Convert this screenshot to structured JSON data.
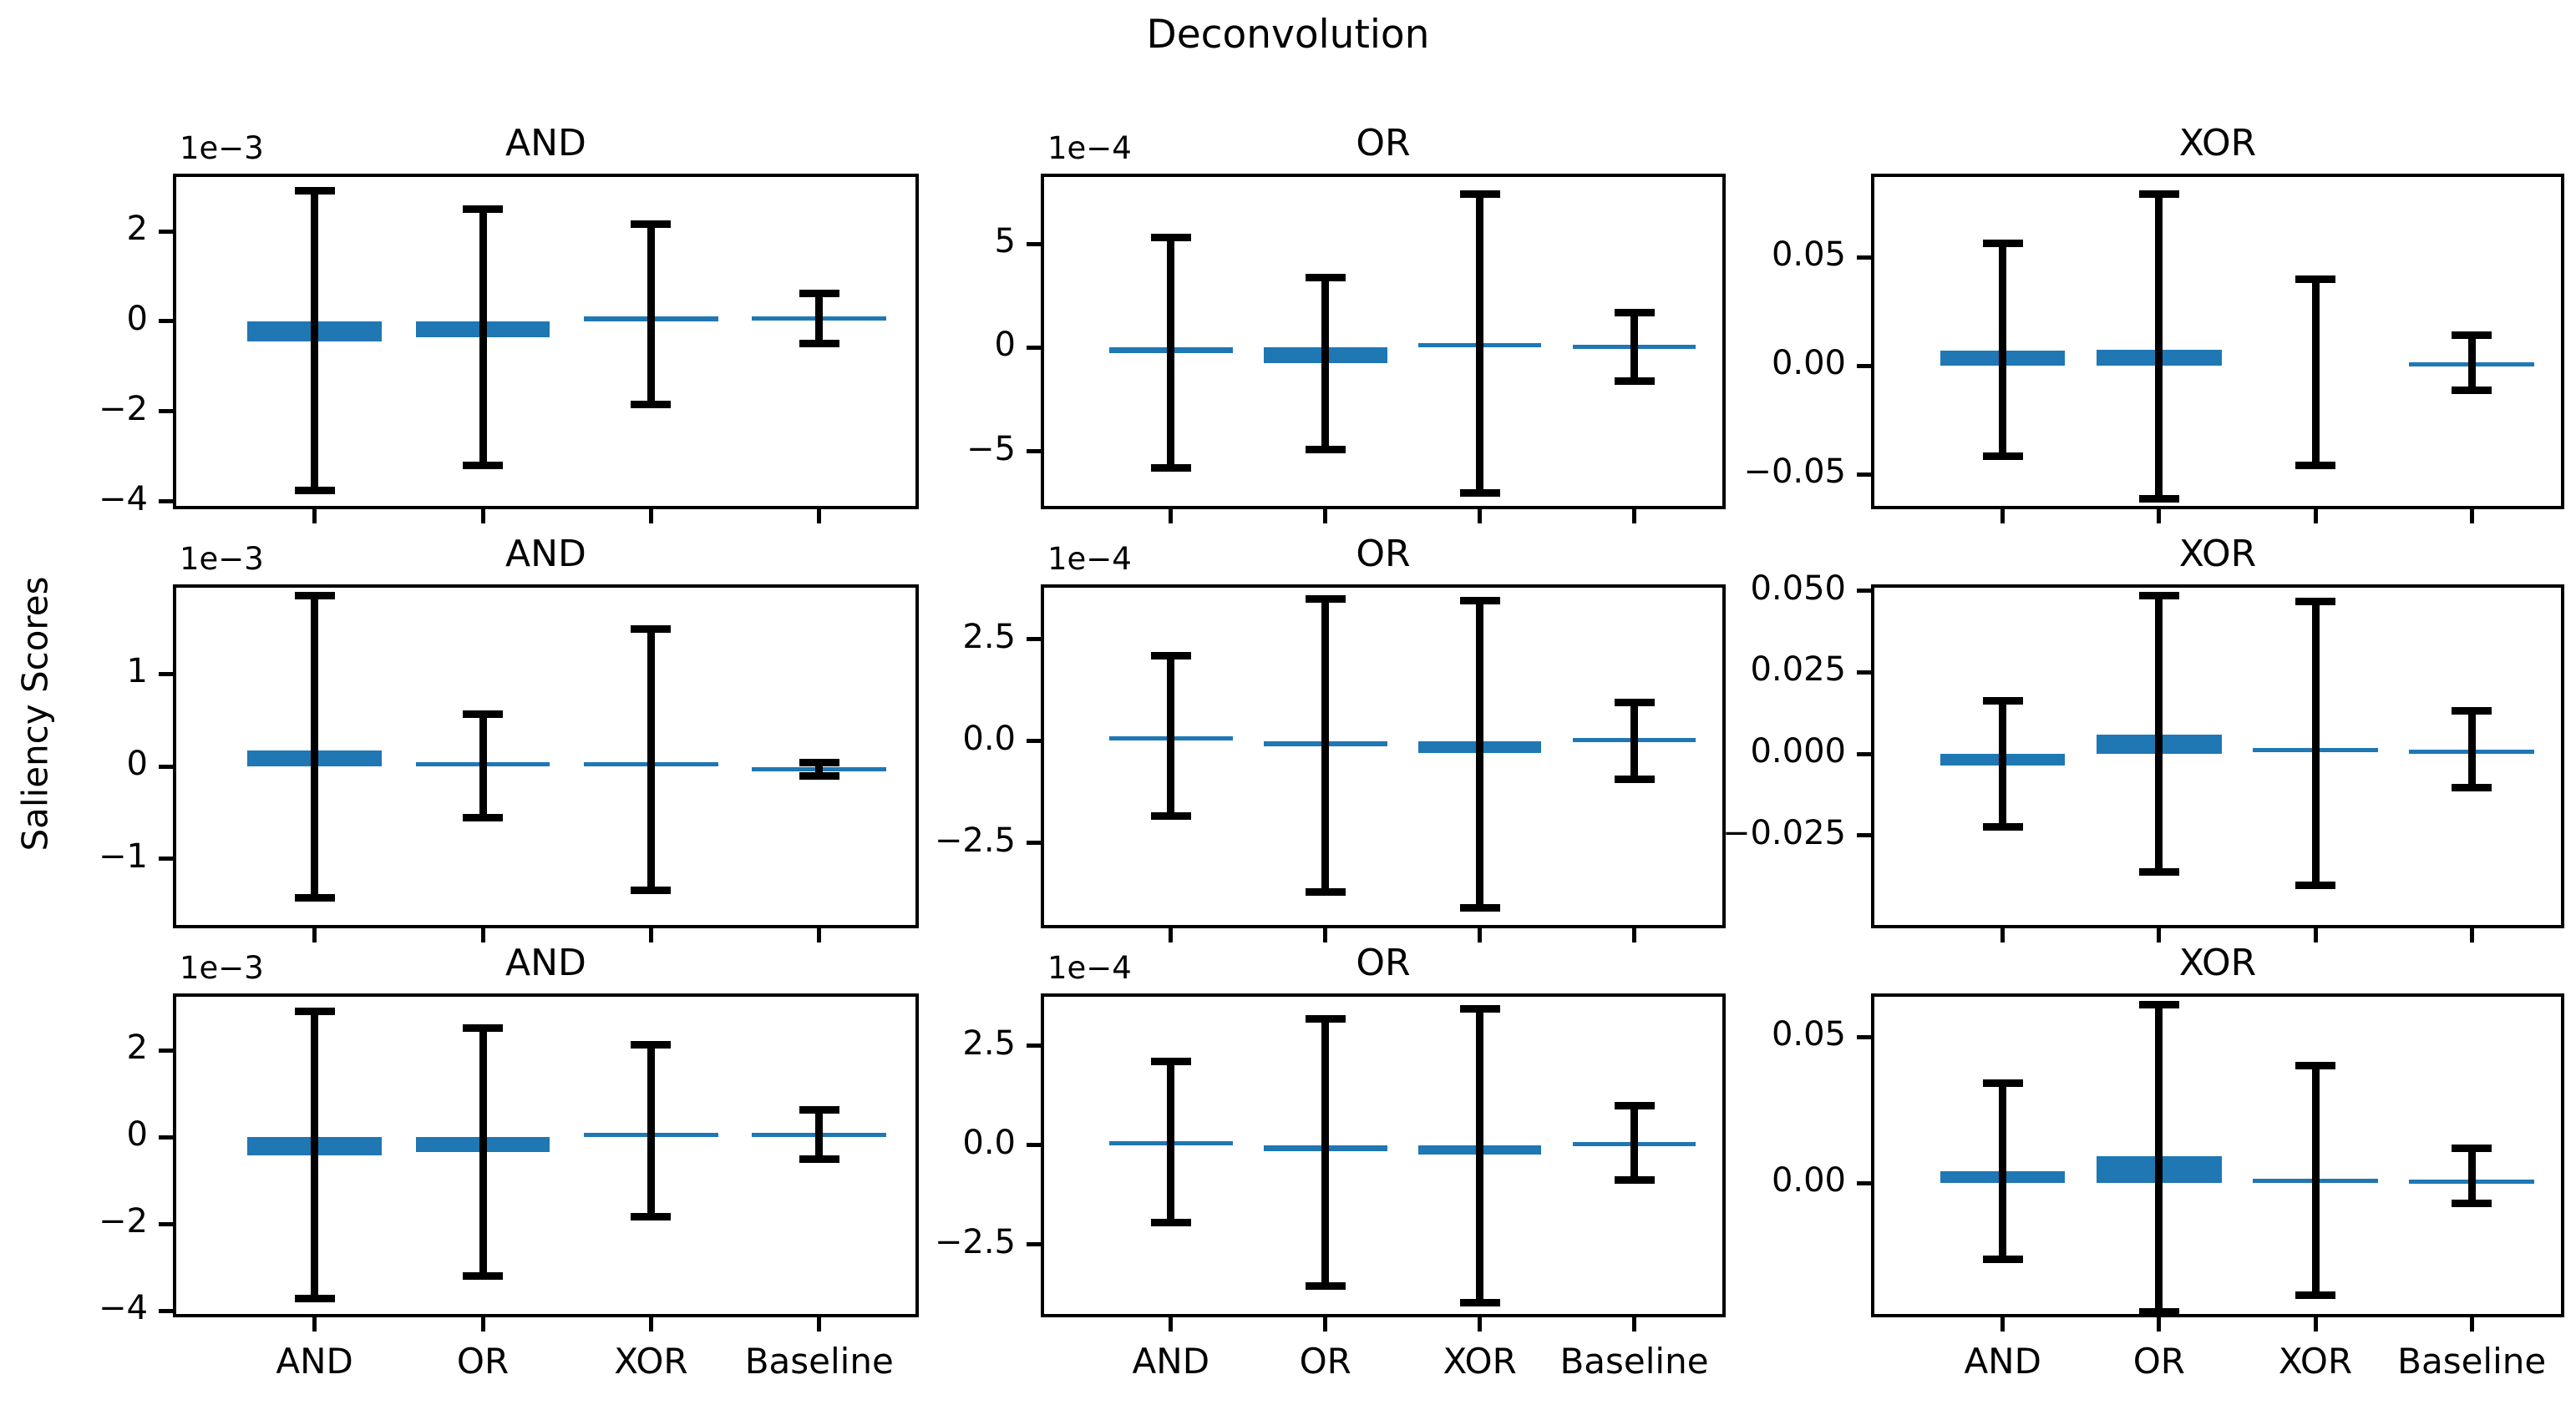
{
  "suptitle": "Deconvolution",
  "ylabel": "Saliency Scores",
  "categories": [
    "AND",
    "OR",
    "XOR",
    "Baseline"
  ],
  "colors": {
    "bar": "#1f77b4",
    "error": "#000000",
    "axis": "#000000",
    "text": "#000000",
    "background": "#ffffff"
  },
  "chart_data": [
    {
      "type": "bar",
      "row": 0,
      "col": 0,
      "title": "AND",
      "offset_label": "1e−3",
      "grid": false,
      "legend": false,
      "ylim": [
        -0.00417,
        0.00328
      ],
      "yticks": [
        {
          "v": 0.002,
          "label": "2"
        },
        {
          "v": 0.0,
          "label": "0"
        },
        {
          "v": -0.002,
          "label": "−2"
        },
        {
          "v": -0.004,
          "label": "−4"
        }
      ],
      "categories": [
        "AND",
        "OR",
        "XOR",
        "Baseline"
      ],
      "values": [
        -0.00045,
        -0.00035,
        0.00012,
        6e-05
      ],
      "whisker_high": [
        0.0029,
        0.0025,
        0.00215,
        0.00062
      ],
      "whisker_low": [
        -0.00375,
        -0.0032,
        -0.00185,
        -0.0005
      ],
      "show_xticklabels": false
    },
    {
      "type": "bar",
      "row": 0,
      "col": 1,
      "title": "OR",
      "offset_label": "1e−4",
      "grid": false,
      "legend": false,
      "ylim": [
        -0.00078,
        0.00084
      ],
      "yticks": [
        {
          "v": 0.0005,
          "label": "5"
        },
        {
          "v": 0.0,
          "label": "0"
        },
        {
          "v": -0.0005,
          "label": "−5"
        }
      ],
      "categories": [
        "AND",
        "OR",
        "XOR",
        "Baseline"
      ],
      "values": [
        -2.5e-05,
        -7.3e-05,
        1e-05,
        3e-06
      ],
      "whisker_high": [
        0.00053,
        0.00034,
        0.00074,
        0.00017
      ],
      "whisker_low": [
        -0.00058,
        -0.00049,
        -0.0007,
        -0.00016
      ],
      "show_xticklabels": false
    },
    {
      "type": "bar",
      "row": 0,
      "col": 2,
      "title": "XOR",
      "offset_label": "",
      "grid": false,
      "legend": false,
      "ylim": [
        -0.066,
        0.0885
      ],
      "yticks": [
        {
          "v": 0.05,
          "label": "0.05"
        },
        {
          "v": 0.0,
          "label": "0.00"
        },
        {
          "v": -0.05,
          "label": "−0.05"
        }
      ],
      "categories": [
        "AND",
        "OR",
        "XOR",
        "Baseline"
      ],
      "values": [
        0.0069,
        0.0073,
        0.0,
        0.0007
      ],
      "whisker_high": [
        0.0566,
        0.079,
        0.0397,
        0.0142
      ],
      "whisker_low": [
        -0.0415,
        -0.0612,
        -0.046,
        -0.0113
      ],
      "show_xticklabels": false
    },
    {
      "type": "bar",
      "row": 1,
      "col": 0,
      "title": "AND",
      "offset_label": "1e−3",
      "grid": false,
      "legend": false,
      "ylim": [
        -0.00175,
        0.00197
      ],
      "yticks": [
        {
          "v": 0.001,
          "label": "1"
        },
        {
          "v": 0.0,
          "label": "0"
        },
        {
          "v": -0.001,
          "label": "−1"
        }
      ],
      "categories": [
        "AND",
        "OR",
        "XOR",
        "Baseline"
      ],
      "values": [
        0.00017,
        2e-05,
        2e-05,
        -3e-05
      ],
      "whisker_high": [
        0.00185,
        0.00057,
        0.00149,
        4e-05
      ],
      "whisker_low": [
        -0.00142,
        -0.00055,
        -0.00134,
        -0.0001
      ],
      "show_xticklabels": false
    },
    {
      "type": "bar",
      "row": 1,
      "col": 1,
      "title": "OR",
      "offset_label": "1e−4",
      "grid": false,
      "legend": false,
      "ylim": [
        -0.00046,
        0.000385
      ],
      "yticks": [
        {
          "v": 0.00025,
          "label": "2.5"
        },
        {
          "v": 0.0,
          "label": "0.0"
        },
        {
          "v": -0.00025,
          "label": "−2.5"
        }
      ],
      "categories": [
        "AND",
        "OR",
        "XOR",
        "Baseline"
      ],
      "values": [
        7e-06,
        -1.3e-05,
        -3e-05,
        2e-06
      ],
      "whisker_high": [
        0.00021,
        0.00035,
        0.000345,
        9.4e-05
      ],
      "whisker_low": [
        -0.000185,
        -0.00037,
        -0.00041,
        -9.4e-05
      ],
      "show_xticklabels": false
    },
    {
      "type": "bar",
      "row": 1,
      "col": 2,
      "title": "XOR",
      "offset_label": "",
      "grid": false,
      "legend": false,
      "ylim": [
        -0.0535,
        0.052
      ],
      "yticks": [
        {
          "v": 0.05,
          "label": "0.050"
        },
        {
          "v": 0.025,
          "label": "0.025"
        },
        {
          "v": 0.0,
          "label": "0.000"
        },
        {
          "v": -0.025,
          "label": "−0.025"
        }
      ],
      "categories": [
        "AND",
        "OR",
        "XOR",
        "Baseline"
      ],
      "values": [
        -0.0035,
        0.0058,
        0.0012,
        0.0006
      ],
      "whisker_high": [
        0.0163,
        0.0485,
        0.0468,
        0.0133
      ],
      "whisker_low": [
        -0.0224,
        -0.0362,
        -0.0404,
        -0.0104
      ],
      "show_xticklabels": false
    },
    {
      "type": "bar",
      "row": 2,
      "col": 0,
      "title": "AND",
      "offset_label": "1e−3",
      "grid": false,
      "legend": false,
      "ylim": [
        -0.00415,
        0.00331
      ],
      "yticks": [
        {
          "v": 0.002,
          "label": "2"
        },
        {
          "v": 0.0,
          "label": "0"
        },
        {
          "v": -0.002,
          "label": "−2"
        },
        {
          "v": -0.004,
          "label": "−4"
        }
      ],
      "categories": [
        "AND",
        "OR",
        "XOR",
        "Baseline"
      ],
      "values": [
        -0.00042,
        -0.00035,
        0.0001,
        5e-05
      ],
      "whisker_high": [
        0.0029,
        0.00252,
        0.00212,
        0.00062
      ],
      "whisker_low": [
        -0.00372,
        -0.0032,
        -0.00183,
        -0.0005
      ],
      "show_xticklabels": true
    },
    {
      "type": "bar",
      "row": 2,
      "col": 1,
      "title": "OR",
      "offset_label": "1e−4",
      "grid": false,
      "legend": false,
      "ylim": [
        -0.000433,
        0.000382
      ],
      "yticks": [
        {
          "v": 0.00025,
          "label": "2.5"
        },
        {
          "v": 0.0,
          "label": "0.0"
        },
        {
          "v": -0.00025,
          "label": "−2.5"
        }
      ],
      "categories": [
        "AND",
        "OR",
        "XOR",
        "Baseline"
      ],
      "values": [
        5e-06,
        -1.6e-05,
        -2.3e-05,
        2e-06
      ],
      "whisker_high": [
        0.00021,
        0.000317,
        0.000344,
        0.0001
      ],
      "whisker_low": [
        -0.000195,
        -0.000354,
        -0.000396,
        -8.8e-05
      ],
      "show_xticklabels": true
    },
    {
      "type": "bar",
      "row": 2,
      "col": 2,
      "title": "XOR",
      "offset_label": "",
      "grid": false,
      "legend": false,
      "ylim": [
        -0.046,
        0.065
      ],
      "yticks": [
        {
          "v": 0.05,
          "label": "0.05"
        },
        {
          "v": 0.0,
          "label": "0.00"
        }
      ],
      "categories": [
        "AND",
        "OR",
        "XOR",
        "Baseline"
      ],
      "values": [
        0.0042,
        0.0092,
        0.0008,
        0.0004
      ],
      "whisker_high": [
        0.0343,
        0.0612,
        0.0402,
        0.0119
      ],
      "whisker_low": [
        -0.026,
        -0.0441,
        -0.0383,
        -0.0069
      ],
      "show_xticklabels": true
    }
  ]
}
